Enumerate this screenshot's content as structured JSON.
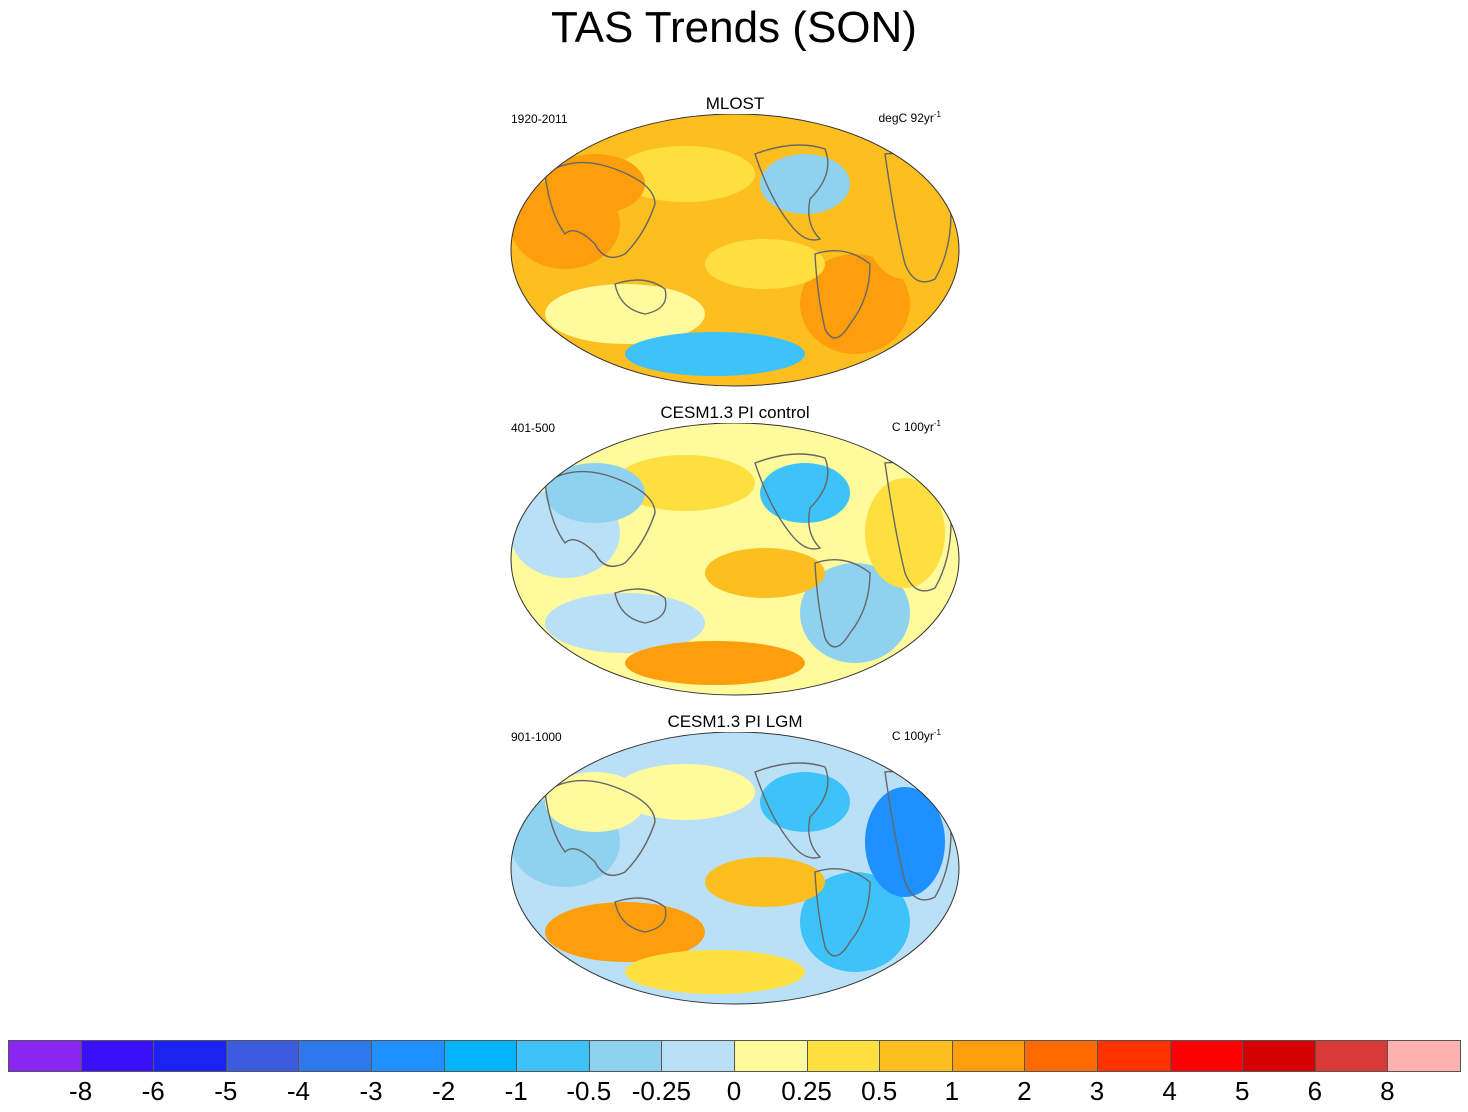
{
  "figure": {
    "title": "TAS Trends (SON)"
  },
  "panels": [
    {
      "title": "MLOST",
      "period": "1920-2011",
      "units_base": "degC 92yr",
      "units_exp": "-1",
      "palette": {
        "base": "#fdbe1f",
        "blobs": [
          "#fe9e0c",
          "#fe9e0c",
          "#fde040",
          "#fde040",
          "#fffa9c",
          "#8fd2f0",
          "#3dc3fa",
          "#fdbe1f",
          "#fe9e0c"
        ]
      }
    },
    {
      "title": "CESM1.3 PI control",
      "period": "401-500",
      "units_base": "C 100yr",
      "units_exp": "-1",
      "palette": {
        "base": "#fffa9c",
        "blobs": [
          "#b9e0f6",
          "#8fd2f0",
          "#fde040",
          "#fdbe1f",
          "#b9e0f6",
          "#3dc3fa",
          "#fe9e0c",
          "#fde040",
          "#8fd2f0"
        ]
      }
    },
    {
      "title": "CESM1.3 PI LGM",
      "period": "901-1000",
      "units_base": "C 100yr",
      "units_exp": "-1",
      "palette": {
        "base": "#b9e0f6",
        "blobs": [
          "#8fd2f0",
          "#3dc3fa",
          "#fffa9c",
          "#fdbe1f",
          "#fe9e0c",
          "#3dc3fa",
          "#fde040",
          "#1e90ff",
          "#fffa9c"
        ]
      }
    }
  ],
  "colorbar": {
    "labels": [
      "-8",
      "-6",
      "-5",
      "-4",
      "-3",
      "-2",
      "-1",
      "-0.5",
      "-0.25",
      "0",
      "0.25",
      "0.5",
      "1",
      "2",
      "3",
      "4",
      "5",
      "6",
      "8"
    ],
    "colors": [
      "#8a26f1",
      "#3a10fa",
      "#1a23f2",
      "#3b5bdc",
      "#2f78eb",
      "#1e90ff",
      "#04b4fb",
      "#3dc3fa",
      "#8fd2f0",
      "#b9e0f6",
      "#fffa9c",
      "#fde040",
      "#fdbe1f",
      "#fe9e0c",
      "#fe6a00",
      "#ff3300",
      "#ff0000",
      "#d50000",
      "#d93838",
      "#ffb0b0"
    ]
  }
}
